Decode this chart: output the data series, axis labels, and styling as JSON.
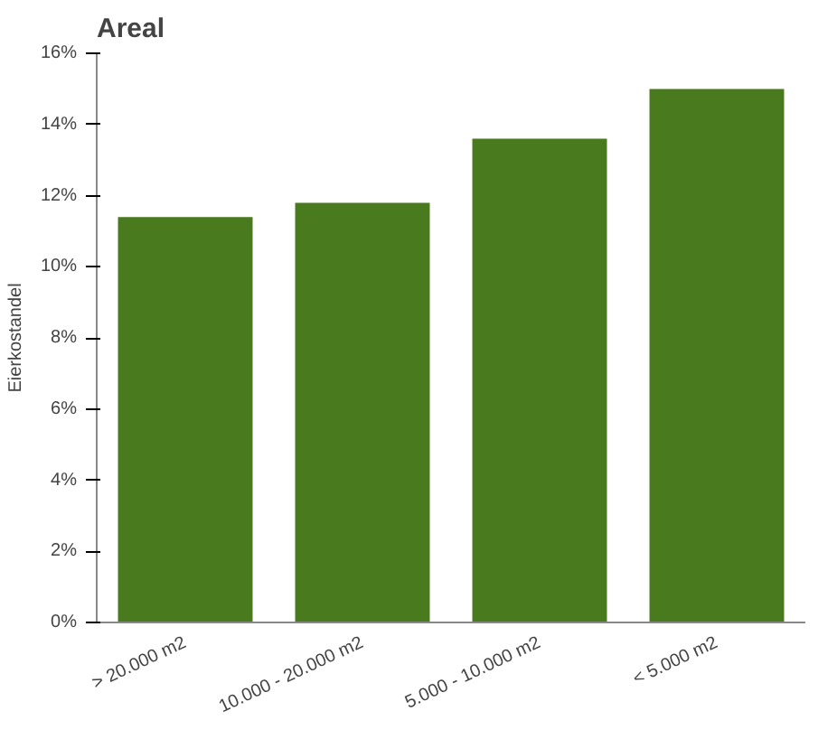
{
  "chart_data": {
    "type": "bar",
    "title": "Areal",
    "ylabel": "Eierkostandel",
    "categories": [
      "> 20.000 m2",
      "10.000 - 20.000 m2",
      "5.000 - 10.000 m2",
      "< 5.000 m2"
    ],
    "values": [
      11.4,
      11.8,
      13.6,
      15.0
    ],
    "color": "#4a7a1e",
    "ylim": [
      0,
      16
    ],
    "yticks": [
      {
        "value": 0,
        "label": "0%"
      },
      {
        "value": 2,
        "label": "2%"
      },
      {
        "value": 4,
        "label": "4%"
      },
      {
        "value": 6,
        "label": "6%"
      },
      {
        "value": 8,
        "label": "8%"
      },
      {
        "value": 10,
        "label": "10%"
      },
      {
        "value": 12,
        "label": "12%"
      },
      {
        "value": 14,
        "label": "14%"
      },
      {
        "value": 16,
        "label": "16%"
      }
    ],
    "grid": false
  }
}
